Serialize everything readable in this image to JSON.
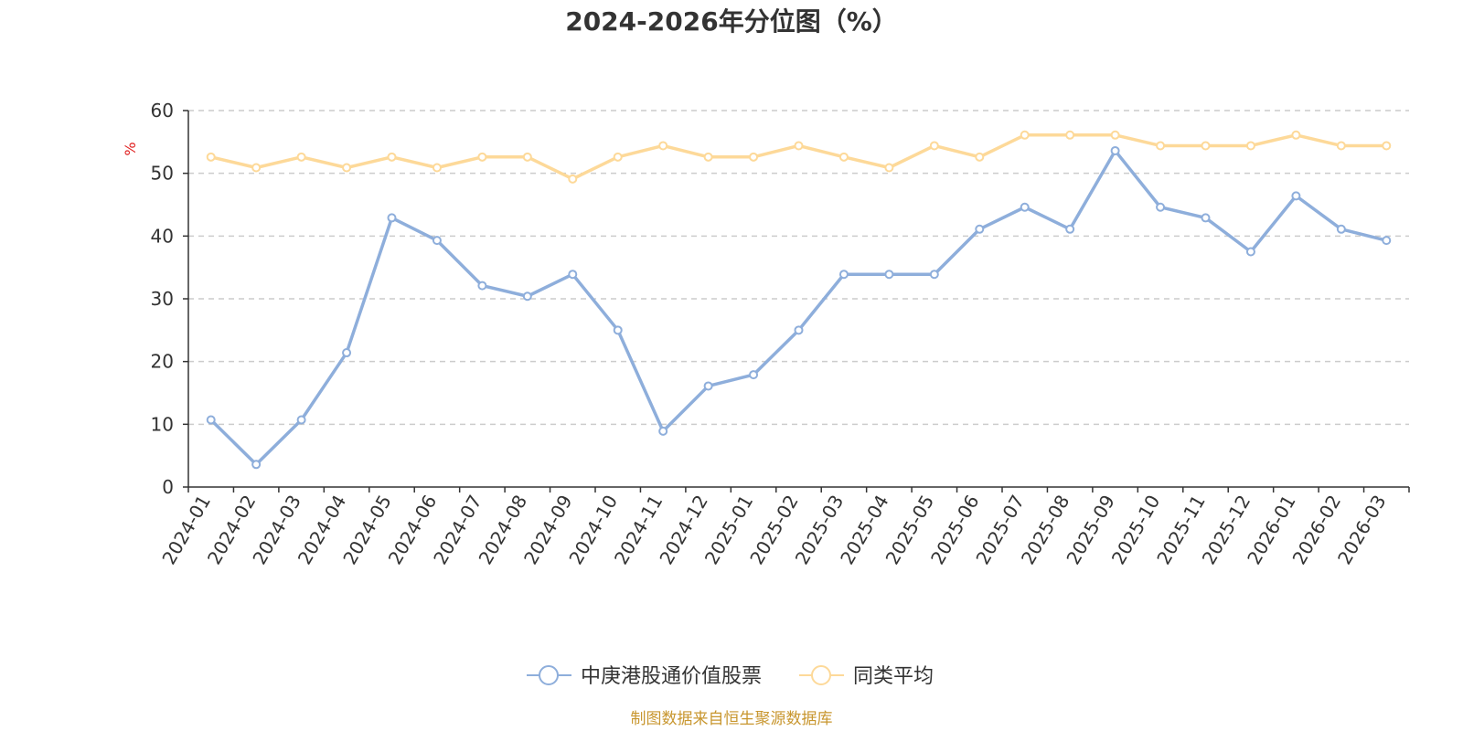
{
  "chart_data": {
    "type": "line",
    "title": "2024-2026年分位图（%）",
    "ylabel": "%",
    "xlabel": "",
    "ylim": [
      0,
      60
    ],
    "yticks": [
      0,
      10,
      20,
      30,
      40,
      50,
      60
    ],
    "grid": true,
    "legend_position": "bottom-center",
    "categories": [
      "2024-01",
      "2024-02",
      "2024-03",
      "2024-04",
      "2024-05",
      "2024-06",
      "2024-07",
      "2024-08",
      "2024-09",
      "2024-10",
      "2024-11",
      "2024-12",
      "2025-01",
      "2025-02",
      "2025-03",
      "2025-04",
      "2025-05",
      "2025-06",
      "2025-07",
      "2025-08",
      "2025-09",
      "2025-10",
      "2025-11",
      "2025-12",
      "2026-01",
      "2026-02",
      "2026-03"
    ],
    "series": [
      {
        "name": "中庚港股通价值股票",
        "color": "#8eaedb",
        "values": [
          10.7,
          3.6,
          10.7,
          21.4,
          42.9,
          39.3,
          32.1,
          30.4,
          33.9,
          25.0,
          8.9,
          16.1,
          17.9,
          25.0,
          33.9,
          33.9,
          33.9,
          41.1,
          44.6,
          41.1,
          53.6,
          44.6,
          42.9,
          37.5,
          46.4,
          41.1,
          39.3
        ]
      },
      {
        "name": "同类平均",
        "color": "#fdd999",
        "values": [
          52.6,
          50.9,
          52.6,
          50.9,
          52.6,
          50.9,
          52.6,
          52.6,
          49.1,
          52.6,
          54.4,
          52.6,
          52.6,
          54.4,
          52.6,
          50.9,
          54.4,
          52.6,
          56.1,
          56.1,
          56.1,
          54.4,
          54.4,
          54.4,
          56.1,
          54.4,
          54.4
        ]
      }
    ],
    "unit_color": "#e02020",
    "axis_color": "#333333",
    "grid_color": "#cccccc"
  },
  "source_text": "制图数据来自恒生聚源数据库",
  "source_color": "#c8962e"
}
